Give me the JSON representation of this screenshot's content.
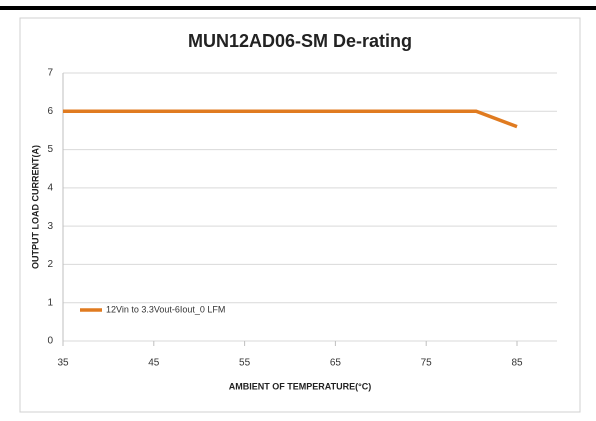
{
  "chart_data": {
    "type": "line",
    "title": "MUN12AD06-SM De-rating",
    "x_label": "AMBIENT OF TEMPERATURE(°C)",
    "y_label": "OUTPUT LOAD CURRENT(A)",
    "x": [
      35,
      80.5,
      85
    ],
    "series": [
      {
        "name": "12Vin to 3.3Vout-6Iout_0 LFM",
        "color": "#e07b20",
        "values": [
          6,
          6,
          5.6
        ]
      }
    ],
    "xlim": [
      35,
      85
    ],
    "xticks": [
      35,
      45,
      55,
      65,
      75,
      85
    ],
    "ylim": [
      0,
      7
    ],
    "yticks": [
      0,
      1,
      2,
      3,
      4,
      5,
      6,
      7
    ],
    "grid": true,
    "legend": "lower left"
  }
}
